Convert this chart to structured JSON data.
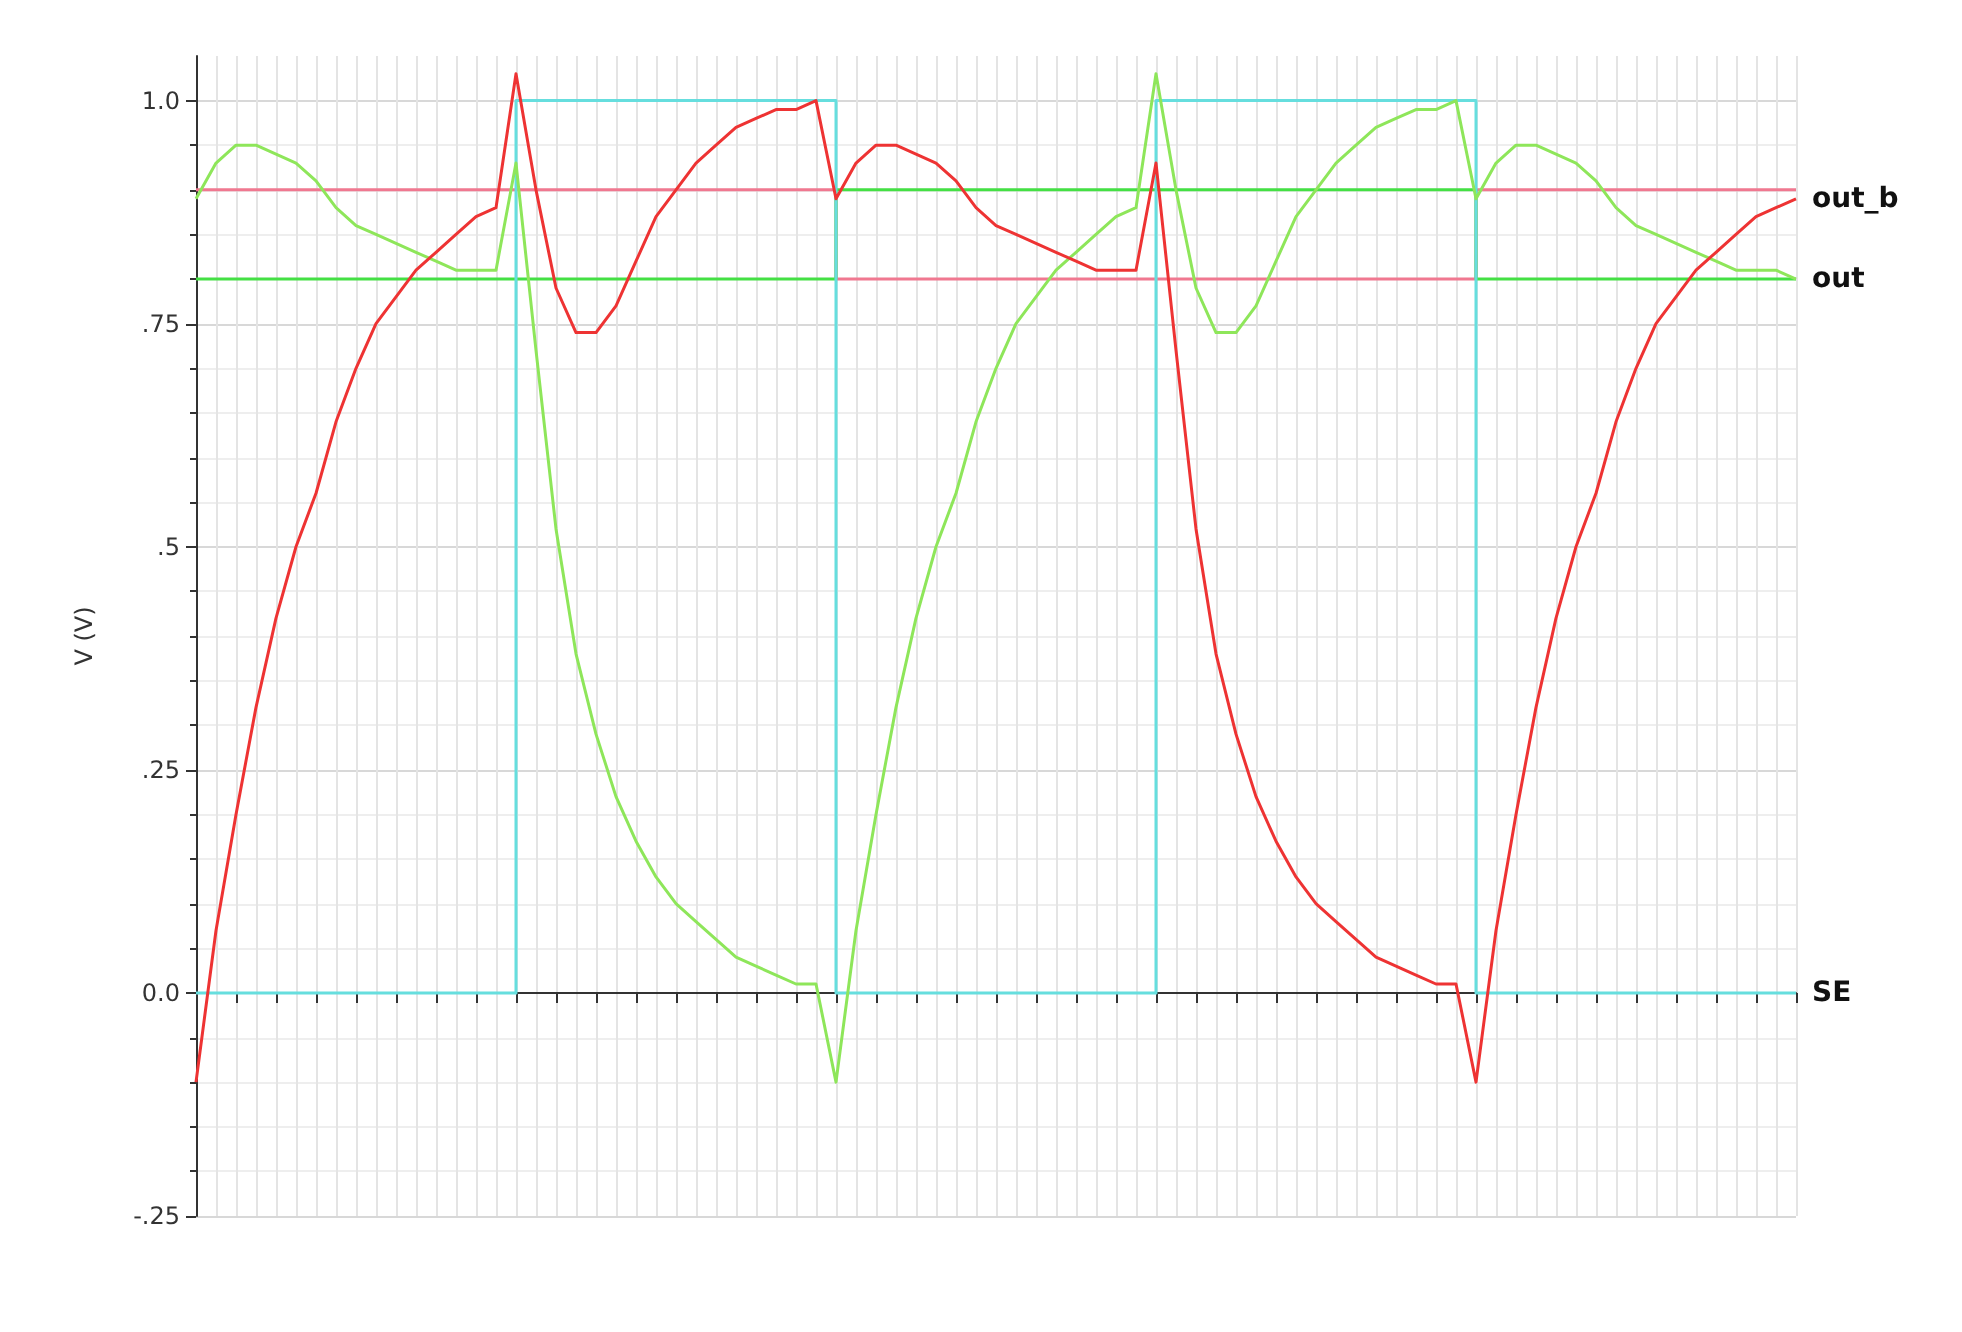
{
  "chart_data": {
    "type": "line",
    "ylabel": "V (V)",
    "categories": [
      null,
      null,
      null,
      null,
      null,
      null,
      null,
      null,
      null,
      null,
      null,
      null,
      null,
      null,
      null,
      null,
      null,
      null,
      null,
      null,
      null,
      null,
      null,
      null,
      null,
      null,
      null,
      null,
      null,
      null,
      null,
      null,
      null,
      null,
      null,
      null,
      null,
      null,
      null,
      null,
      null,
      null,
      null,
      null,
      null,
      null,
      null,
      null,
      null,
      null,
      null,
      null,
      null,
      null,
      null,
      null,
      null,
      null,
      null,
      null,
      null,
      null,
      null,
      null,
      null,
      null,
      null,
      null,
      null,
      null,
      null,
      null,
      null,
      null,
      null,
      null,
      null,
      null,
      null,
      null,
      null
    ],
    "series": [
      {
        "type": "step",
        "color": "#f07890",
        "values": [
          0.9,
          0.9,
          0.9,
          0.9,
          0.9,
          0.9,
          0.9,
          0.9,
          0.9,
          0.9,
          0.9,
          0.9,
          0.9,
          0.9,
          0.9,
          0.9,
          0.9,
          0.9,
          0.9,
          0.9,
          0.9,
          0.9,
          0.9,
          0.9,
          0.9,
          0.9,
          0.9,
          0.9,
          0.9,
          0.9,
          0.9,
          0.9,
          0.8,
          0.8,
          0.8,
          0.8,
          0.8,
          0.8,
          0.8,
          0.8,
          0.8,
          0.8,
          0.8,
          0.8,
          0.8,
          0.8,
          0.8,
          0.8,
          0.8,
          0.8,
          0.8,
          0.8,
          0.8,
          0.8,
          0.8,
          0.8,
          0.8,
          0.8,
          0.8,
          0.8,
          0.8,
          0.8,
          0.8,
          0.8,
          0.9,
          0.9,
          0.9,
          0.9,
          0.9,
          0.9,
          0.9,
          0.9,
          0.9,
          0.9,
          0.9,
          0.9,
          0.9,
          0.9,
          0.9,
          0.9,
          0.9
        ]
      },
      {
        "type": "step",
        "color": "#44e044",
        "values": [
          0.8,
          0.8,
          0.8,
          0.8,
          0.8,
          0.8,
          0.8,
          0.8,
          0.8,
          0.8,
          0.8,
          0.8,
          0.8,
          0.8,
          0.8,
          0.8,
          0.8,
          0.8,
          0.8,
          0.8,
          0.8,
          0.8,
          0.8,
          0.8,
          0.8,
          0.8,
          0.8,
          0.8,
          0.8,
          0.8,
          0.8,
          0.8,
          0.9,
          0.9,
          0.9,
          0.9,
          0.9,
          0.9,
          0.9,
          0.9,
          0.9,
          0.9,
          0.9,
          0.9,
          0.9,
          0.9,
          0.9,
          0.9,
          0.9,
          0.9,
          0.9,
          0.9,
          0.9,
          0.9,
          0.9,
          0.9,
          0.9,
          0.9,
          0.9,
          0.9,
          0.9,
          0.9,
          0.9,
          0.9,
          0.8,
          0.8,
          0.8,
          0.8,
          0.8,
          0.8,
          0.8,
          0.8,
          0.8,
          0.8,
          0.8,
          0.8,
          0.8,
          0.8,
          0.8,
          0.8,
          0.8
        ]
      },
      {
        "type": "step",
        "name": "SE",
        "color": "#66dede",
        "values": [
          0,
          0,
          0,
          0,
          0,
          0,
          0,
          0,
          0,
          0,
          0,
          0,
          0,
          0,
          0,
          0,
          1,
          1,
          1,
          1,
          1,
          1,
          1,
          1,
          1,
          1,
          1,
          1,
          1,
          1,
          1,
          1,
          0,
          0,
          0,
          0,
          0,
          0,
          0,
          0,
          0,
          0,
          0,
          0,
          0,
          0,
          0,
          0,
          1,
          1,
          1,
          1,
          1,
          1,
          1,
          1,
          1,
          1,
          1,
          1,
          1,
          1,
          1,
          1,
          0,
          0,
          0,
          0,
          0,
          0,
          0,
          0,
          0,
          0,
          0,
          0,
          0,
          0,
          0,
          0,
          0
        ]
      },
      {
        "name": "out",
        "color": "#8ee65a",
        "values": [
          0.89,
          0.93,
          0.95,
          0.95,
          0.94,
          0.93,
          0.91,
          0.88,
          0.86,
          0.85,
          0.84,
          0.83,
          0.82,
          0.81,
          0.81,
          0.81,
          0.93,
          0.72,
          0.52,
          0.38,
          0.29,
          0.22,
          0.17,
          0.13,
          0.1,
          0.08,
          0.06,
          0.04,
          0.03,
          0.02,
          0.01,
          0.01,
          -0.1,
          0.07,
          0.2,
          0.32,
          0.42,
          0.5,
          0.56,
          0.64,
          0.7,
          0.75,
          0.78,
          0.81,
          0.83,
          0.85,
          0.87,
          0.88,
          1.03,
          0.9,
          0.79,
          0.74,
          0.74,
          0.77,
          0.82,
          0.87,
          0.9,
          0.93,
          0.95,
          0.97,
          0.98,
          0.99,
          0.99,
          1.0,
          0.89,
          0.93,
          0.95,
          0.95,
          0.94,
          0.93,
          0.91,
          0.88,
          0.86,
          0.85,
          0.84,
          0.83,
          0.82,
          0.81,
          0.81,
          0.81,
          0.8
        ]
      },
      {
        "name": "out_b",
        "color": "#ee3333",
        "values": [
          -0.1,
          0.07,
          0.2,
          0.32,
          0.42,
          0.5,
          0.56,
          0.64,
          0.7,
          0.75,
          0.78,
          0.81,
          0.83,
          0.85,
          0.87,
          0.88,
          1.03,
          0.9,
          0.79,
          0.74,
          0.74,
          0.77,
          0.82,
          0.87,
          0.9,
          0.93,
          0.95,
          0.97,
          0.98,
          0.99,
          0.99,
          1.0,
          0.89,
          0.93,
          0.95,
          0.95,
          0.94,
          0.93,
          0.91,
          0.88,
          0.86,
          0.85,
          0.84,
          0.83,
          0.82,
          0.81,
          0.81,
          0.81,
          0.93,
          0.72,
          0.52,
          0.38,
          0.29,
          0.22,
          0.17,
          0.13,
          0.1,
          0.08,
          0.06,
          0.04,
          0.03,
          0.02,
          0.01,
          0.01,
          -0.1,
          0.07,
          0.2,
          0.32,
          0.42,
          0.5,
          0.56,
          0.64,
          0.7,
          0.75,
          0.78,
          0.81,
          0.83,
          0.85,
          0.87,
          0.88,
          0.89
        ]
      }
    ],
    "ylim": [
      -0.25,
      1.05
    ],
    "yticks": [
      {
        "value": -0.25,
        "label": "-.25"
      },
      {
        "value": 0,
        "label": "0.0"
      },
      {
        "value": 0.25,
        "label": ".25"
      },
      {
        "value": 0.5,
        "label": ".5"
      },
      {
        "value": 0.75,
        "label": ".75"
      },
      {
        "value": 1,
        "label": "1.0"
      }
    ],
    "grid": true,
    "marker": "none",
    "tick_labels": "y"
  }
}
